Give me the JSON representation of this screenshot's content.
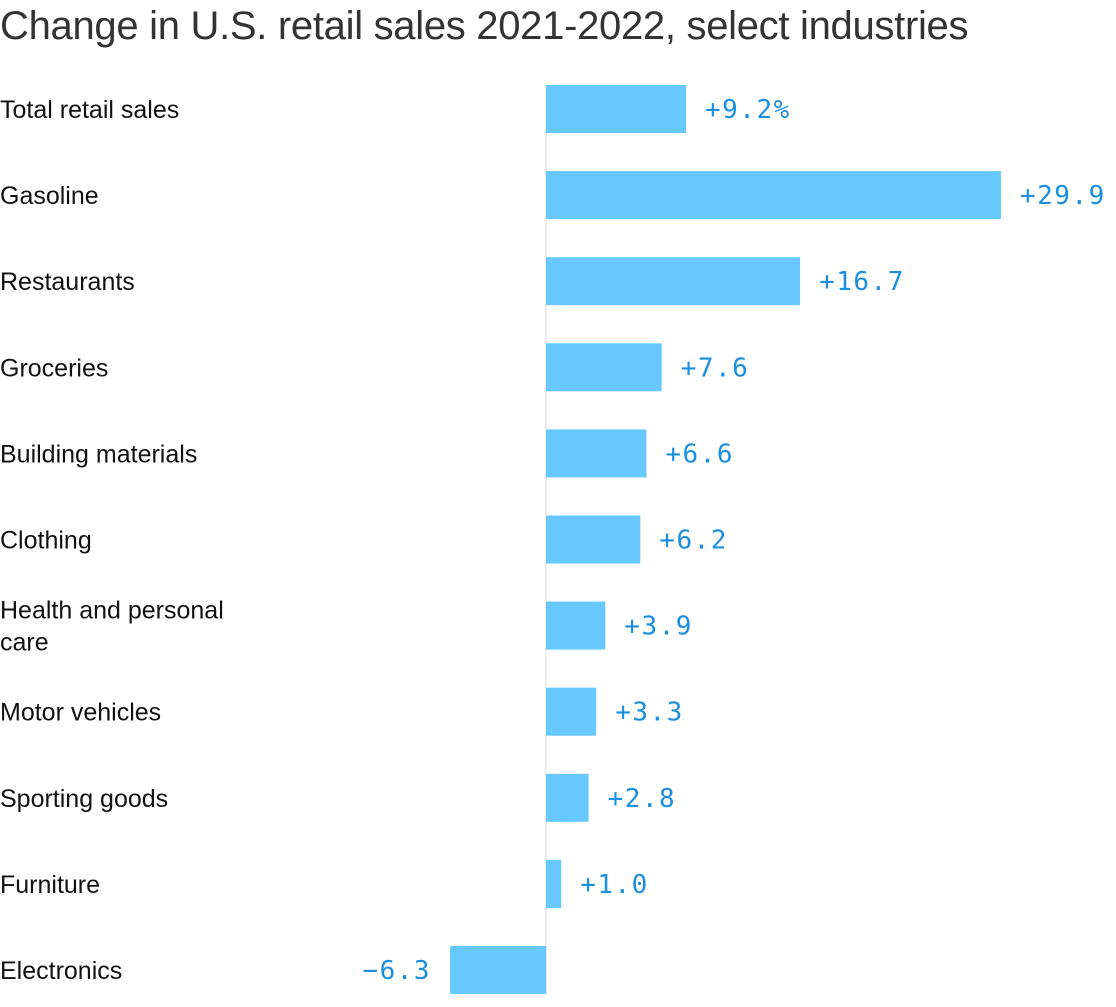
{
  "title": "Change in U.S. retail sales 2021-2022, select industries",
  "colors": {
    "bar": "#66c8ff",
    "value_text": "#1a8fe0",
    "axis": "#e6e6e6",
    "category_text": "#111111",
    "title_text": "#333333"
  },
  "chart_data": {
    "type": "bar",
    "orientation": "horizontal",
    "title": "Change in U.S. retail sales 2021-2022, select industries",
    "xlabel": "",
    "ylabel": "",
    "unit": "%",
    "grid": false,
    "legend": "none",
    "xlim": [
      -7,
      30
    ],
    "categories": [
      "Total retail sales",
      "Gasoline",
      "Restaurants",
      "Groceries",
      "Building materials",
      "Clothing",
      "Health and personal care",
      "Motor vehicles",
      "Sporting goods",
      "Furniture",
      "Electronics"
    ],
    "category_lines": [
      [
        "Total retail sales"
      ],
      [
        "Gasoline"
      ],
      [
        "Restaurants"
      ],
      [
        "Groceries"
      ],
      [
        "Building materials"
      ],
      [
        "Clothing"
      ],
      [
        "Health and personal",
        "care"
      ],
      [
        "Motor vehicles"
      ],
      [
        "Sporting goods"
      ],
      [
        "Furniture"
      ],
      [
        "Electronics"
      ]
    ],
    "values": [
      9.2,
      29.9,
      16.7,
      7.6,
      6.6,
      6.2,
      3.9,
      3.3,
      2.8,
      1.0,
      -6.3
    ],
    "value_labels": [
      "+9.2%",
      "+29.9",
      "+16.7",
      "+7.6",
      "+6.6",
      "+6.2",
      "+3.9",
      "+3.3",
      "+2.8",
      "+1.0",
      "−6.3"
    ]
  }
}
